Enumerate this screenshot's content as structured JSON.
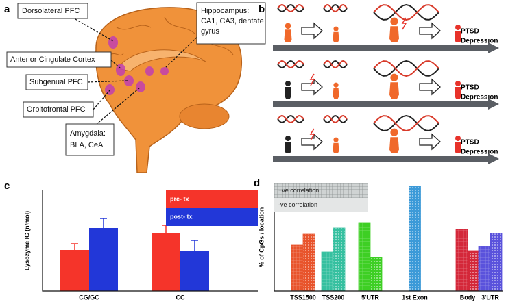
{
  "panel_a": {
    "label": "a",
    "regions": [
      {
        "lines": [
          "Dorsolateral PFC"
        ]
      },
      {
        "lines": [
          "Hippocampus:",
          "CA1, CA3, dentate",
          "gyrus"
        ]
      },
      {
        "lines": [
          "Anterior Cingulate  Cortex"
        ]
      },
      {
        "lines": [
          "Subgenual PFC"
        ]
      },
      {
        "lines": [
          "Orbitofrontal PFC"
        ]
      },
      {
        "lines": [
          "Amygdala:",
          "BLA, CeA"
        ]
      }
    ]
  },
  "panel_b": {
    "label": "b",
    "rows": [
      {
        "outcomes": [
          "PTSD",
          "Depression"
        ]
      },
      {
        "outcomes": [
          "PTSD",
          "Depression"
        ]
      },
      {
        "outcomes": [
          "PTSD",
          "Depression"
        ]
      }
    ]
  },
  "chart_data": [
    {
      "type": "bar",
      "panel_label": "c",
      "y_label": "Lysozyme IC (n/mol)",
      "categories": [
        "CG/GC",
        "CC"
      ],
      "series": [
        {
          "name": "pre- tx",
          "color": "#f5342a",
          "values": [
            60,
            85
          ],
          "errors": [
            9,
            11
          ]
        },
        {
          "name": "post- tx",
          "color": "#2237d8",
          "values": [
            92,
            58
          ],
          "errors": [
            14,
            16
          ]
        }
      ],
      "ylim": [
        0,
        147
      ],
      "legend": "upper right"
    },
    {
      "type": "bar",
      "panel_label": "d",
      "y_label": "% of CpGs / location",
      "categories": [
        "TSS1500",
        "TSS200",
        "5'UTR",
        "1st Exon",
        "Body",
        "3'UTR"
      ],
      "colors": [
        "#e8542c",
        "#36c0a0",
        "#3ecf24",
        "#3c9ad8",
        "#d4283a",
        "#5a52dc"
      ],
      "series": [
        {
          "name": "+ve correlation",
          "values": [
            67,
            57,
            100,
            null,
            90,
            65
          ]
        },
        {
          "name": "-ve correlation",
          "values": [
            83,
            92,
            49,
            153,
            59,
            84
          ]
        }
      ],
      "ylim": [
        0,
        157
      ],
      "legend": "upper left"
    }
  ]
}
